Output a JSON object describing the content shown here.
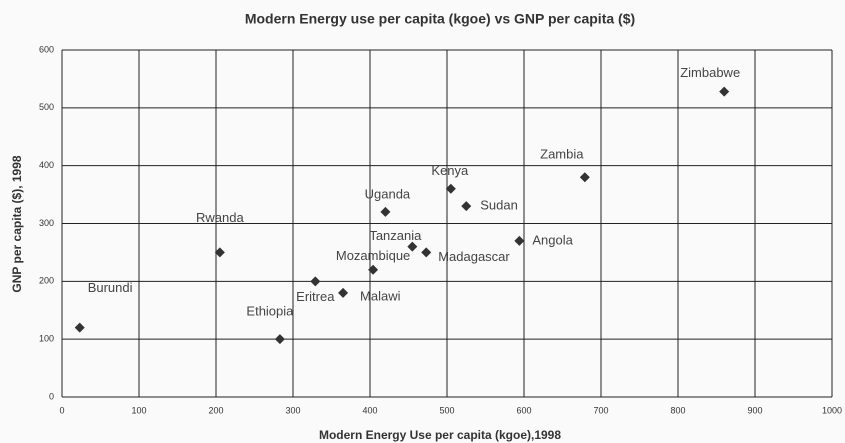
{
  "chart_data": {
    "type": "scatter",
    "title": "Modern Energy use per capita (kgoe) vs GNP per capita ($)",
    "x_label": "Modern Energy Use per capita (kgoe),1998",
    "y_label": "GNP per capita ($), 1998",
    "xlim": [
      0,
      1000
    ],
    "ylim": [
      0,
      600
    ],
    "xticks": [
      0,
      100,
      200,
      300,
      400,
      500,
      600,
      700,
      800,
      900,
      1000
    ],
    "yticks": [
      0,
      100,
      200,
      300,
      400,
      500,
      600
    ],
    "grid": true,
    "series": [
      {
        "color": "#333333",
        "x": [
          23,
          205,
          283,
          329,
          365,
          404,
          455,
          473,
          420,
          505,
          525,
          594,
          679,
          860
        ],
        "values": [
          120,
          250,
          100,
          200,
          180,
          220,
          260,
          250,
          320,
          360,
          330,
          270,
          380,
          528
        ],
        "labels": [
          "Burundi",
          "Rwanda",
          "Ethiopia",
          "Eritrea",
          "Malawi",
          "Mozambique",
          "Tanzania",
          "Madagascar",
          "Uganda",
          "Kenya",
          "Sudan",
          "Angola",
          "Zambia",
          "Zimbabwe"
        ]
      }
    ]
  }
}
